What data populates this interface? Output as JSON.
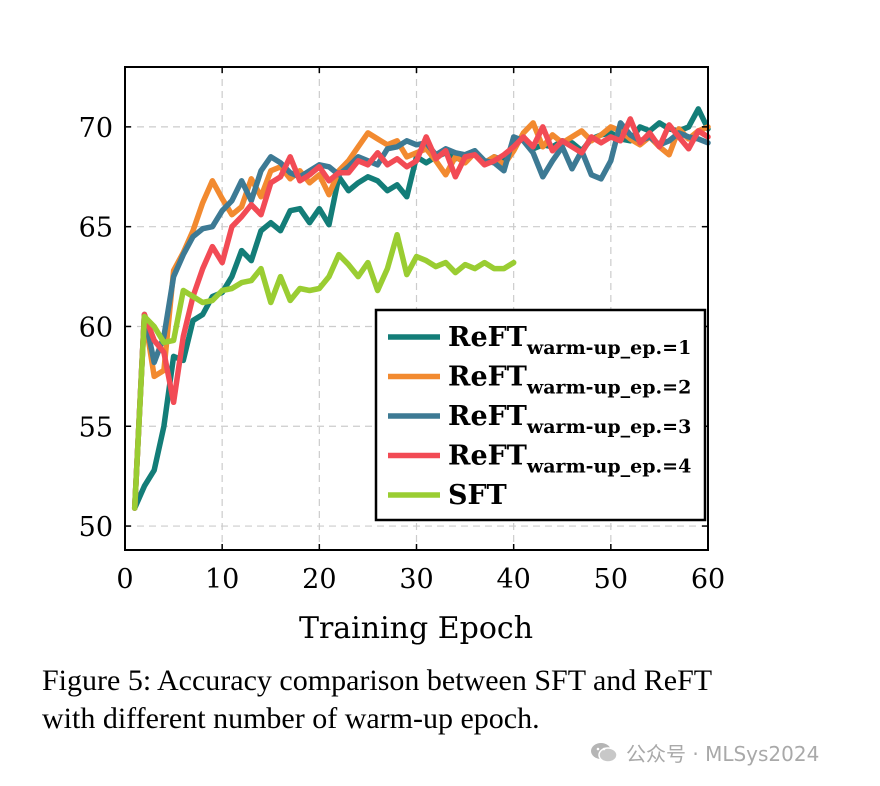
{
  "chart_data": {
    "type": "line",
    "title": "",
    "xlabel": "Training Epoch",
    "ylabel": "",
    "xlim": [
      0,
      60
    ],
    "ylim": [
      48.8,
      73
    ],
    "xticks": [
      0,
      10,
      20,
      30,
      40,
      50,
      60
    ],
    "yticks": [
      50,
      55,
      60,
      65,
      70
    ],
    "grid": true,
    "legend_position": "bottom-right",
    "series": [
      {
        "name": "ReFT",
        "subscript": "warm-up_ep.=1",
        "color": "#137d78",
        "x": [
          1,
          2,
          3,
          4,
          5,
          6,
          7,
          8,
          9,
          10,
          11,
          12,
          13,
          14,
          15,
          16,
          17,
          18,
          19,
          20,
          21,
          22,
          23,
          24,
          25,
          26,
          27,
          28,
          29,
          30,
          31,
          32,
          33,
          34,
          35,
          36,
          37,
          38,
          39,
          40,
          41,
          42,
          43,
          44,
          45,
          46,
          47,
          48,
          49,
          50,
          51,
          52,
          53,
          54,
          55,
          56,
          57,
          58,
          59,
          60
        ],
        "values": [
          50.9,
          52,
          52.8,
          55,
          58.5,
          58.3,
          60.3,
          60.6,
          61.5,
          61.7,
          62.5,
          63.8,
          63.3,
          64.8,
          65.2,
          64.8,
          65.8,
          65.9,
          65.2,
          65.9,
          65.1,
          67.5,
          66.8,
          67.2,
          67.5,
          67.3,
          66.8,
          67.1,
          66.5,
          68.5,
          68.2,
          68.5,
          68.7,
          68.4,
          68.6,
          68.8,
          68.2,
          68.5,
          68.3,
          69.2,
          69.5,
          68.9,
          69.1,
          69.0,
          69.3,
          69.2,
          68.8,
          69.4,
          69.6,
          69.7,
          69.4,
          69.3,
          70.0,
          69.8,
          70.2,
          69.9,
          69.8,
          70.0,
          70.9,
          69.9
        ]
      },
      {
        "name": "ReFT",
        "subscript": "warm-up_ep.=2",
        "color": "#f28a30",
        "x": [
          1,
          2,
          3,
          4,
          5,
          6,
          7,
          8,
          9,
          10,
          11,
          12,
          13,
          14,
          15,
          16,
          17,
          18,
          19,
          20,
          21,
          22,
          23,
          24,
          25,
          26,
          27,
          28,
          29,
          30,
          31,
          32,
          33,
          34,
          35,
          36,
          37,
          38,
          39,
          40,
          41,
          42,
          43,
          44,
          45,
          46,
          47,
          48,
          49,
          50,
          51,
          52,
          53,
          54,
          55,
          56,
          57,
          58,
          59,
          60
        ],
        "values": [
          50.9,
          60.6,
          57.5,
          57.8,
          62.8,
          63.7,
          64.8,
          66.2,
          67.3,
          66.4,
          65.6,
          66.0,
          67.4,
          66.5,
          67.8,
          68.0,
          67.4,
          67.8,
          67.2,
          67.6,
          66.6,
          67.8,
          68.3,
          69.0,
          69.7,
          69.4,
          69.1,
          69.3,
          68.5,
          68.7,
          68.9,
          68.3,
          67.6,
          68.5,
          68.2,
          68.7,
          68.2,
          68.5,
          68.1,
          68.8,
          69.7,
          70.2,
          69.0,
          69.6,
          69.2,
          69.5,
          69.8,
          69.3,
          69.6,
          70.0,
          69.8,
          69.4,
          69.1,
          69.5,
          69.0,
          68.6,
          69.9,
          69.4,
          69.8,
          70.0
        ]
      },
      {
        "name": "ReFT",
        "subscript": "warm-up_ep.=3",
        "color": "#3d7a94",
        "x": [
          1,
          2,
          3,
          4,
          5,
          6,
          7,
          8,
          9,
          10,
          11,
          12,
          13,
          14,
          15,
          16,
          17,
          18,
          19,
          20,
          21,
          22,
          23,
          24,
          25,
          26,
          27,
          28,
          29,
          30,
          31,
          32,
          33,
          34,
          35,
          36,
          37,
          38,
          39,
          40,
          41,
          42,
          43,
          44,
          45,
          46,
          47,
          48,
          49,
          50,
          51,
          52,
          53,
          54,
          55,
          56,
          57,
          58,
          59,
          60
        ],
        "values": [
          50.9,
          60.6,
          58.2,
          59.5,
          62.5,
          63.6,
          64.5,
          64.9,
          65.0,
          65.8,
          66.3,
          67.3,
          66.3,
          67.8,
          68.5,
          68.2,
          67.7,
          67.5,
          67.8,
          68.1,
          68.0,
          67.6,
          68.0,
          68.5,
          68.3,
          68.1,
          68.9,
          69.0,
          69.3,
          69.1,
          69.2,
          68.6,
          68.9,
          68.7,
          68.6,
          68.8,
          68.3,
          68.2,
          67.8,
          69.5,
          69.3,
          68.7,
          67.5,
          68.3,
          69.0,
          67.9,
          68.8,
          67.6,
          67.4,
          68.3,
          70.2,
          69.6,
          69.3,
          69.5,
          69.1,
          69.3,
          69.7,
          69.5,
          69.4,
          69.2
        ]
      },
      {
        "name": "ReFT",
        "subscript": "warm-up_ep.=4",
        "color": "#f24b55",
        "x": [
          1,
          2,
          3,
          4,
          5,
          6,
          7,
          8,
          9,
          10,
          11,
          12,
          13,
          14,
          15,
          16,
          17,
          18,
          19,
          20,
          21,
          22,
          23,
          24,
          25,
          26,
          27,
          28,
          29,
          30,
          31,
          32,
          33,
          34,
          35,
          36,
          37,
          38,
          39,
          40,
          41,
          42,
          43,
          44,
          45,
          46,
          47,
          48,
          49,
          50,
          51,
          52,
          53,
          54,
          55,
          56,
          57,
          58,
          59,
          60
        ],
        "values": [
          50.9,
          60.6,
          59.3,
          58.7,
          56.2,
          59.5,
          61.5,
          62.9,
          64.0,
          63.2,
          65.0,
          65.5,
          66.1,
          65.6,
          67.2,
          67.5,
          68.5,
          67.3,
          67.6,
          68.0,
          67.3,
          67.7,
          67.7,
          68.3,
          68.1,
          68.7,
          68.1,
          68.4,
          68.0,
          68.3,
          69.5,
          68.4,
          68.8,
          67.5,
          68.5,
          68.6,
          68.1,
          68.3,
          68.6,
          69.0,
          69.5,
          69.0,
          70.0,
          68.8,
          69.3,
          69.0,
          68.7,
          69.5,
          69.2,
          69.5,
          69.3,
          70.4,
          69.2,
          69.7,
          69.0,
          70.1,
          69.5,
          68.9,
          69.8,
          69.5
        ]
      },
      {
        "name": "SFT",
        "subscript": "",
        "color": "#9acd32",
        "x": [
          1,
          2,
          3,
          4,
          5,
          6,
          7,
          8,
          9,
          10,
          11,
          12,
          13,
          14,
          15,
          16,
          17,
          18,
          19,
          20,
          21,
          22,
          23,
          24,
          25,
          26,
          27,
          28,
          29,
          30,
          31,
          32,
          33,
          34,
          35,
          36,
          37,
          38,
          39,
          40
        ],
        "values": [
          50.9,
          60.5,
          60.0,
          59.2,
          59.3,
          61.8,
          61.5,
          61.2,
          61.3,
          61.8,
          61.9,
          62.2,
          62.3,
          62.9,
          61.2,
          62.5,
          61.3,
          61.9,
          61.8,
          61.9,
          62.5,
          63.6,
          63.1,
          62.5,
          63.2,
          61.8,
          62.9,
          64.6,
          62.6,
          63.5,
          63.3,
          63.0,
          63.2,
          62.7,
          63.1,
          62.9,
          63.2,
          62.9,
          62.9,
          63.2
        ]
      }
    ]
  },
  "caption": {
    "line1": "Figure 5: Accuracy comparison between SFT and ReFT",
    "line2": "with different number of warm-up epoch."
  },
  "watermark": {
    "text": "公众号 · MLSys2024"
  }
}
